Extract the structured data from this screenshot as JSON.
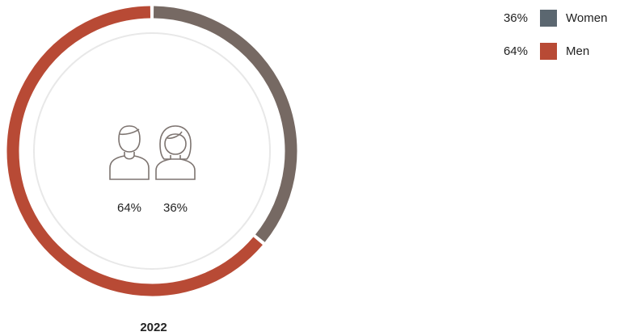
{
  "chart_data": {
    "type": "donut",
    "title": "2022",
    "categories": [
      "Women",
      "Men"
    ],
    "values": [
      36,
      64
    ],
    "value_labels": [
      "36%",
      "64%"
    ],
    "colors": [
      "#766963",
      "#b84a35"
    ],
    "legend_colors": [
      "#5b6770",
      "#b84a35"
    ],
    "legend": "top-right"
  }
}
